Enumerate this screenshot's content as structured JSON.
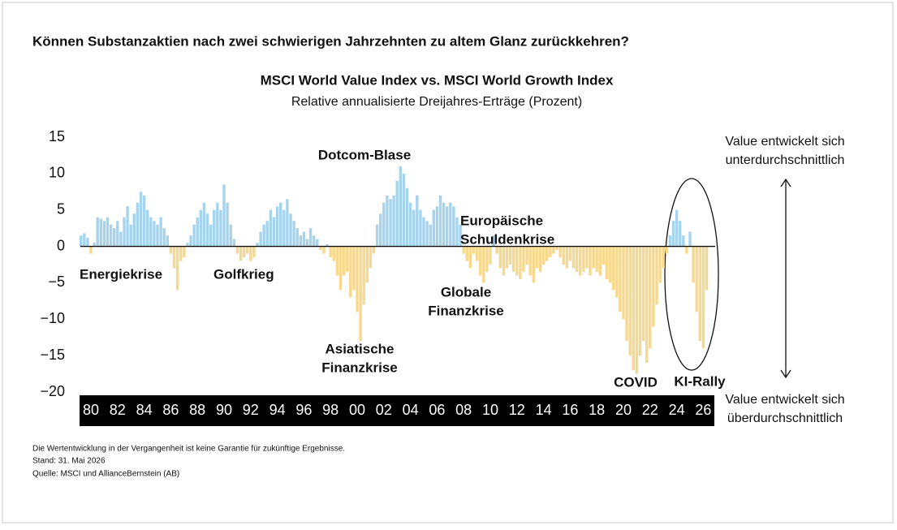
{
  "page_title": "Können Substanzaktien nach zwei schwierigen Jahrzehnten zu altem Glanz zurückkehren?",
  "footnotes": [
    "Die Wertentwicklung in der Vergangenheit ist keine Garantie für zukünftige Ergebnisse.",
    "Stand: 31. Mai 2026",
    "Quelle: MSCI und AllianceBernstein (AB)"
  ],
  "chart_data": {
    "type": "bar",
    "title": "MSCI World Value Index vs. MSCI World Growth Index",
    "subtitle": "Relative annualisierte Dreijahres-Erträge (Prozent)",
    "color_positive": "#a6d4ee",
    "color_negative": "#f6d88f",
    "xlim": [
      1979.2,
      2026.9
    ],
    "xticks": [
      {
        "value": 1980,
        "label": "80"
      },
      {
        "value": 1982,
        "label": "82"
      },
      {
        "value": 1984,
        "label": "84"
      },
      {
        "value": 1986,
        "label": "86"
      },
      {
        "value": 1988,
        "label": "88"
      },
      {
        "value": 1990,
        "label": "90"
      },
      {
        "value": 1992,
        "label": "92"
      },
      {
        "value": 1994,
        "label": "94"
      },
      {
        "value": 1996,
        "label": "96"
      },
      {
        "value": 1998,
        "label": "98"
      },
      {
        "value": 2000,
        "label": "00"
      },
      {
        "value": 2002,
        "label": "02"
      },
      {
        "value": 2004,
        "label": "04"
      },
      {
        "value": 2006,
        "label": "06"
      },
      {
        "value": 2008,
        "label": "08"
      },
      {
        "value": 2010,
        "label": "10"
      },
      {
        "value": 2012,
        "label": "12"
      },
      {
        "value": 2014,
        "label": "14"
      },
      {
        "value": 2016,
        "label": "16"
      },
      {
        "value": 2018,
        "label": "18"
      },
      {
        "value": 2020,
        "label": "20"
      },
      {
        "value": 2022,
        "label": "22"
      },
      {
        "value": 2024,
        "label": "24"
      },
      {
        "value": 2026,
        "label": "26"
      }
    ],
    "ylim": [
      -20,
      15
    ],
    "yticks": [
      15,
      10,
      5,
      0,
      {
        "value": -5,
        "label": "−5"
      },
      {
        "value": -10,
        "label": "−10"
      },
      {
        "value": -15,
        "label": "−15"
      },
      {
        "value": -20,
        "label": "−20"
      }
    ],
    "annotations": [
      [
        "Energiekrise"
      ],
      [
        "Golfkrieg"
      ],
      [
        "Dotcom-Blase"
      ],
      [
        "Asiatische",
        "Finanzkrise"
      ],
      [
        "Europäische",
        "Schuldenkrise"
      ],
      [
        "Globale",
        "Finanzkrise"
      ],
      [
        "COVID"
      ],
      [
        "KI-Rally"
      ]
    ],
    "side_notes": [
      [
        "Value entwickelt sich",
        "unterdurchschnittlich"
      ],
      [
        "Value entwickelt sich",
        "überdurchschnittlich"
      ]
    ],
    "x": [
      1979.25,
      1979.5,
      1979.75,
      1980,
      1980.25,
      1980.5,
      1980.75,
      1981,
      1981.25,
      1981.5,
      1981.75,
      1982,
      1982.25,
      1982.5,
      1982.75,
      1983,
      1983.25,
      1983.5,
      1983.75,
      1984,
      1984.25,
      1984.5,
      1984.75,
      1985,
      1985.25,
      1985.5,
      1985.75,
      1986,
      1986.25,
      1986.5,
      1986.75,
      1987,
      1987.25,
      1987.5,
      1987.75,
      1988,
      1988.25,
      1988.5,
      1988.75,
      1989,
      1989.25,
      1989.5,
      1989.75,
      1990,
      1990.25,
      1990.5,
      1990.75,
      1991,
      1991.25,
      1991.5,
      1991.75,
      1992,
      1992.25,
      1992.5,
      1992.75,
      1993,
      1993.25,
      1993.5,
      1993.75,
      1994,
      1994.25,
      1994.5,
      1994.75,
      1995,
      1995.25,
      1995.5,
      1995.75,
      1996,
      1996.25,
      1996.5,
      1996.75,
      1997,
      1997.25,
      1997.5,
      1997.75,
      1998,
      1998.25,
      1998.5,
      1998.75,
      1999,
      1999.25,
      1999.5,
      1999.75,
      2000,
      2000.25,
      2000.5,
      2000.75,
      2001,
      2001.25,
      2001.5,
      2001.75,
      2002,
      2002.25,
      2002.5,
      2002.75,
      2003,
      2003.25,
      2003.5,
      2003.75,
      2004,
      2004.25,
      2004.5,
      2004.75,
      2005,
      2005.25,
      2005.5,
      2005.75,
      2006,
      2006.25,
      2006.5,
      2006.75,
      2007,
      2007.25,
      2007.5,
      2007.75,
      2008,
      2008.25,
      2008.5,
      2008.75,
      2009,
      2009.25,
      2009.5,
      2009.75,
      2010,
      2010.25,
      2010.5,
      2010.75,
      2011,
      2011.25,
      2011.5,
      2011.75,
      2012,
      2012.25,
      2012.5,
      2012.75,
      2013,
      2013.25,
      2013.5,
      2013.75,
      2014,
      2014.25,
      2014.5,
      2014.75,
      2015,
      2015.25,
      2015.5,
      2015.75,
      2016,
      2016.25,
      2016.5,
      2016.75,
      2017,
      2017.25,
      2017.5,
      2017.75,
      2018,
      2018.25,
      2018.5,
      2018.75,
      2019,
      2019.25,
      2019.5,
      2019.75,
      2020,
      2020.25,
      2020.5,
      2020.75,
      2021,
      2021.25,
      2021.5,
      2021.75,
      2022,
      2022.25,
      2022.5,
      2022.75,
      2023,
      2023.25,
      2023.5,
      2023.75,
      2024,
      2024.25,
      2024.5,
      2024.75,
      2025,
      2025.25,
      2025.5,
      2025.75,
      2026,
      2026.25
    ],
    "values": [
      1.5,
      1.8,
      1.2,
      -1.0,
      0.5,
      4.0,
      3.8,
      3.5,
      4.0,
      3.0,
      2.5,
      3.5,
      2.0,
      4.0,
      5.5,
      3.0,
      4.5,
      6.0,
      7.5,
      7.0,
      5.0,
      4.0,
      3.5,
      3.0,
      4.0,
      2.5,
      1.5,
      -1.0,
      -3.0,
      -6.0,
      -2.0,
      -1.5,
      0.5,
      1.5,
      3.0,
      4.0,
      5.0,
      6.0,
      4.5,
      3.0,
      5.0,
      6.0,
      5.0,
      8.5,
      6.0,
      3.0,
      1.0,
      -1.0,
      -2.0,
      -1.5,
      -1.0,
      -2.0,
      -1.5,
      0.5,
      2.0,
      3.0,
      3.5,
      5.0,
      4.0,
      5.5,
      6.0,
      5.0,
      6.5,
      4.5,
      3.5,
      2.5,
      1.5,
      2.0,
      1.0,
      2.5,
      1.5,
      1.0,
      -0.5,
      -1.0,
      0.3,
      -1.5,
      -2.0,
      -4.0,
      -6.0,
      -4.0,
      -3.5,
      -7.0,
      -6.0,
      -9.0,
      -13.0,
      -8.0,
      -5.0,
      -3.0,
      -1.0,
      3.0,
      4.5,
      6.0,
      7.0,
      6.5,
      7.0,
      9.0,
      11.0,
      10.0,
      8.0,
      6.0,
      5.0,
      7.0,
      5.0,
      4.0,
      3.5,
      3.0,
      5.0,
      5.5,
      7.0,
      6.0,
      5.5,
      6.0,
      5.5,
      4.0,
      3.0,
      -1.0,
      -2.0,
      -3.0,
      -1.0,
      -2.0,
      -4.0,
      -5.0,
      -3.5,
      -2.5,
      1.5,
      -1.0,
      -3.0,
      -4.0,
      -3.0,
      -2.5,
      -3.5,
      -4.0,
      -4.5,
      -3.5,
      -2.5,
      -4.0,
      -5.0,
      -3.0,
      -3.5,
      -2.5,
      -2.0,
      -1.5,
      -1.0,
      -0.5,
      -1.5,
      -2.5,
      -3.0,
      -2.0,
      -3.0,
      -3.5,
      -4.0,
      -3.5,
      -3.0,
      -4.0,
      -3.0,
      -3.5,
      -4.0,
      -2.5,
      -4.5,
      -5.0,
      -6.0,
      -7.0,
      -9.0,
      -10.0,
      -13.0,
      -15.0,
      -17.0,
      -17.5,
      -15.0,
      -13.0,
      -16.0,
      -14.0,
      -11.0,
      -8.0,
      -5.0,
      -3.0,
      -1.0,
      1.5,
      3.5,
      5.0,
      3.5,
      1.5,
      -1.0,
      2.0,
      -5.0,
      -9.0,
      -13.0,
      -14.0,
      -6.0
    ]
  }
}
